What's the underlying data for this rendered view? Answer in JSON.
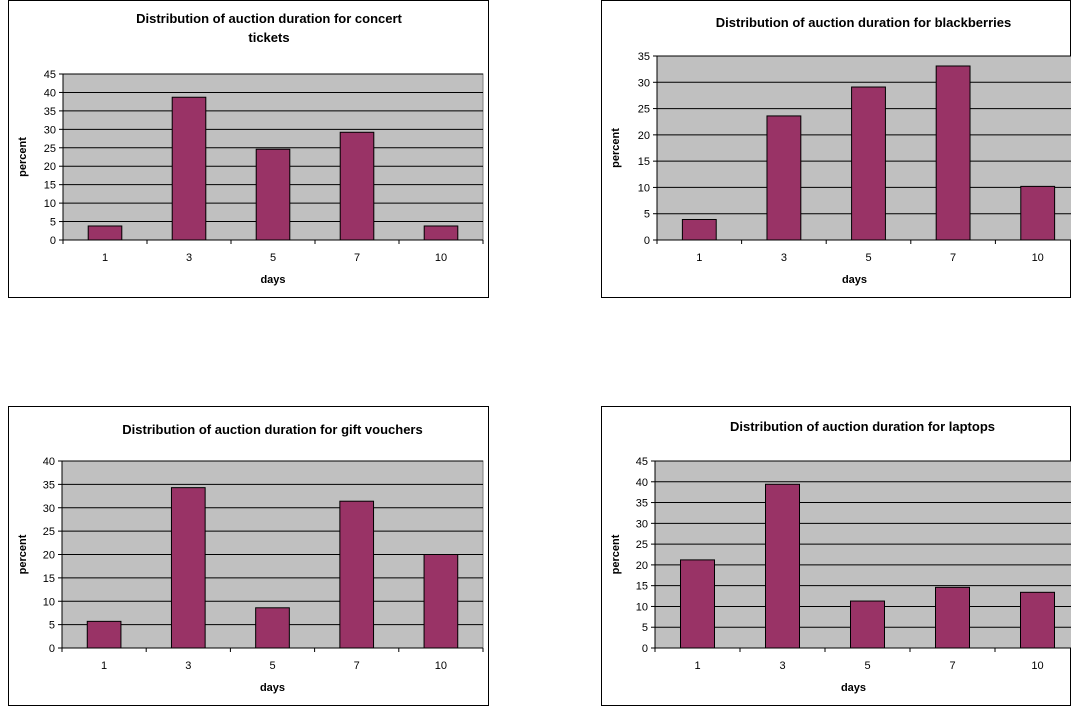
{
  "chart_data": [
    {
      "type": "bar",
      "title": "Distribution of auction duration for concert tickets",
      "title_lines": [
        "Distribution of auction duration for concert",
        "tickets"
      ],
      "xlabel": "days",
      "ylabel": "percent",
      "categories": [
        "1",
        "3",
        "5",
        "7",
        "10"
      ],
      "values": [
        3.8,
        38.7,
        24.6,
        29.2,
        3.8
      ],
      "ylim": [
        0,
        45
      ],
      "ytick_step": 5,
      "grid": true,
      "colors": {
        "bar": "#993366",
        "plot_bg": "#c0c0c0"
      }
    },
    {
      "type": "bar",
      "title": "Distribution of auction duration for blackberries",
      "title_lines": [
        "Distribution of auction duration for blackberries"
      ],
      "xlabel": "days",
      "ylabel": "percent",
      "categories": [
        "1",
        "3",
        "5",
        "7",
        "10"
      ],
      "values": [
        3.9,
        23.6,
        29.1,
        33.1,
        10.2
      ],
      "ylim": [
        0,
        35
      ],
      "ytick_step": 5,
      "grid": true,
      "colors": {
        "bar": "#993366",
        "plot_bg": "#c0c0c0"
      }
    },
    {
      "type": "bar",
      "title": "Distribution of auction duration for gift vouchers",
      "title_lines": [
        "Distribution of auction duration for gift vouchers"
      ],
      "xlabel": "days",
      "ylabel": "percent",
      "categories": [
        "1",
        "3",
        "5",
        "7",
        "10"
      ],
      "values": [
        5.7,
        34.3,
        8.6,
        31.4,
        20.0
      ],
      "ylim": [
        0,
        40
      ],
      "ytick_step": 5,
      "grid": true,
      "colors": {
        "bar": "#993366",
        "plot_bg": "#c0c0c0"
      }
    },
    {
      "type": "bar",
      "title": "Distribution of auction duration for laptops",
      "title_lines": [
        "Distribution of auction duration for laptops"
      ],
      "xlabel": "days",
      "ylabel": "percent",
      "categories": [
        "1",
        "3",
        "5",
        "7",
        "10"
      ],
      "values": [
        21.2,
        39.4,
        11.3,
        14.6,
        13.4
      ],
      "ylim": [
        0,
        45
      ],
      "ytick_step": 5,
      "grid": true,
      "colors": {
        "bar": "#993366",
        "plot_bg": "#c0c0c0"
      }
    }
  ]
}
